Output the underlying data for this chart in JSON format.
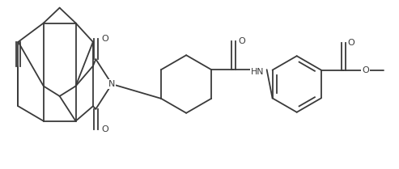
{
  "background_color": "#ffffff",
  "line_color": "#3a3a3a",
  "line_width": 1.3,
  "figsize": [
    4.93,
    2.09
  ],
  "dpi": 100,
  "xlim": [
    0,
    9.86
  ],
  "ylim": [
    0,
    4.18
  ]
}
